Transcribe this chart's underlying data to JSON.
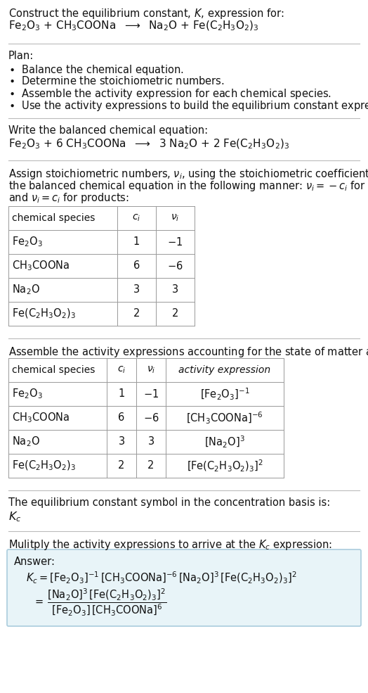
{
  "bg_color": "#ffffff",
  "fig_width": 5.24,
  "fig_height": 9.85,
  "dpi": 100,
  "sections": {
    "header_line1": "Construct the equilibrium constant, $K$, expression for:",
    "header_line2": "Fe$_2$O$_3$ + CH$_3$COONa  $\\longrightarrow$  Na$_2$O + Fe(C$_2$H$_3$O$_2$)$_3$",
    "plan_title": "Plan:",
    "plan_items": [
      "\\textbullet  Balance the chemical equation.",
      "\\textbullet  Determine the stoichiometric numbers.",
      "\\textbullet  Assemble the activity expression for each chemical species.",
      "\\textbullet  Use the activity expressions to build the equilibrium constant expression."
    ],
    "balanced_intro": "Write the balanced chemical equation:",
    "balanced_eq": "Fe$_2$O$_3$ + 6 CH$_3$COONa  $\\longrightarrow$  3 Na$_2$O + 2 Fe(C$_2$H$_3$O$_2$)$_3$",
    "stoich_intro": "Assign stoichiometric numbers, $\\nu_i$, using the stoichiometric coefficients, $c_i$, from\nthe balanced chemical equation in the following manner: $\\nu_i = -c_i$ for reactants\nand $\\nu_i = c_i$ for products:",
    "table1_headers": [
      "chemical species",
      "$c_i$",
      "$\\nu_i$"
    ],
    "table1_rows": [
      [
        "Fe$_2$O$_3$",
        "1",
        "$-1$"
      ],
      [
        "CH$_3$COONa",
        "6",
        "$-6$"
      ],
      [
        "Na$_2$O",
        "3",
        "3"
      ],
      [
        "Fe(C$_2$H$_3$O$_2$)$_3$",
        "2",
        "2"
      ]
    ],
    "activity_intro": "Assemble the activity expressions accounting for the state of matter and $\\nu_i$:",
    "table2_headers": [
      "chemical species",
      "$c_i$",
      "$\\nu_i$",
      "activity expression"
    ],
    "table2_rows": [
      [
        "Fe$_2$O$_3$",
        "1",
        "$-1$",
        "[Fe$_2$O$_3$]$^{-1}$"
      ],
      [
        "CH$_3$COONa",
        "6",
        "$-6$",
        "[CH$_3$COONa]$^{-6}$"
      ],
      [
        "Na$_2$O",
        "3",
        "3",
        "[Na$_2$O]$^3$"
      ],
      [
        "Fe(C$_2$H$_3$O$_2$)$_3$",
        "2",
        "2",
        "[Fe(C$_2$H$_3$O$_2$)$_3$]$^2$"
      ]
    ],
    "kc_intro": "The equilibrium constant symbol in the concentration basis is:",
    "kc_symbol": "$K_c$",
    "multiply_intro": "Mulitply the activity expressions to arrive at the $K_c$ expression:",
    "answer_label": "Answer:",
    "answer_line1": "$K_c = [\\mathrm{Fe_2O_3}]^{-1}\\,[\\mathrm{CH_3COONa}]^{-6}\\,[\\mathrm{Na_2O}]^3\\,[\\mathrm{Fe(C_2H_3O_2)_3}]^2$",
    "answer_line2a": "$= \\dfrac{[\\mathrm{Na_2O}]^3\\,[\\mathrm{Fe(C_2H_3O_2)_3}]^2}{[\\mathrm{Fe_2O_3}]\\,[\\mathrm{CH_3COONa}]^6}$",
    "answer_box_color": "#e8f4f8",
    "answer_box_border": "#aaccdd",
    "sep_color": "#bbbbbb",
    "text_color": "#111111",
    "fontsize": 10.5
  }
}
